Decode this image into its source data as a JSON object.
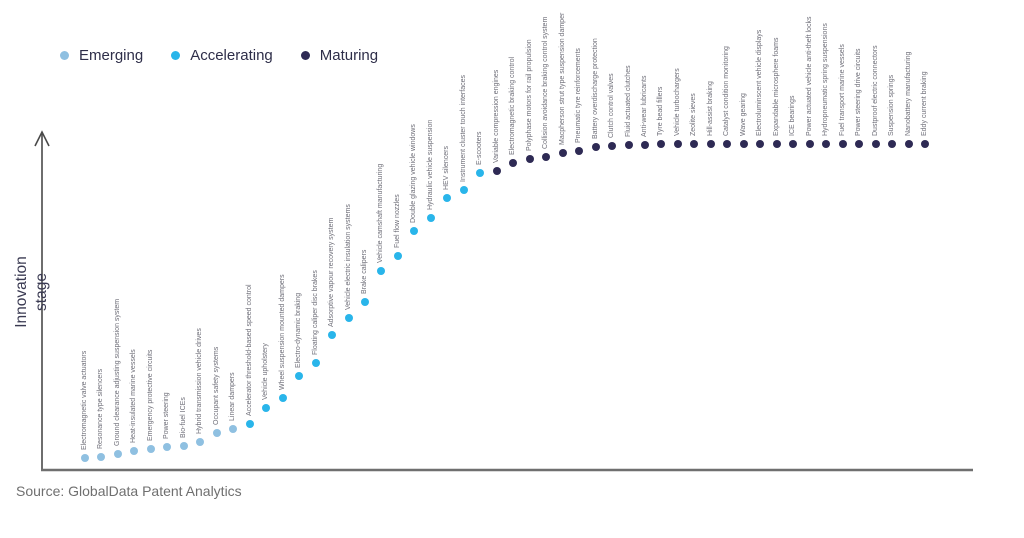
{
  "axis": {
    "y_label": "Innovation stage"
  },
  "source": {
    "text": "Source: GlobalData Patent Analytics"
  },
  "chart_data": {
    "type": "scatter",
    "title": "",
    "xlabel": "",
    "ylabel": "Innovation stage",
    "ylim": [
      0,
      100
    ],
    "grid": false,
    "legend_position": "top-left",
    "legend": [
      {
        "label": "Emerging",
        "color": "#8FC0E1"
      },
      {
        "label": "Accelerating",
        "color": "#29B5EA"
      },
      {
        "label": "Maturing",
        "color": "#2E2A54"
      }
    ],
    "points": [
      {
        "label": "Electromagnetic valve actuators",
        "stage": "Emerging",
        "score": 3.7
      },
      {
        "label": "Resonance type silencers",
        "stage": "Emerging",
        "score": 4.0
      },
      {
        "label": "Ground clearance adjusting suspension system",
        "stage": "Emerging",
        "score": 4.9
      },
      {
        "label": "Heat-insulated marine vessels",
        "stage": "Emerging",
        "score": 5.8
      },
      {
        "label": "Emergency protective circuits",
        "stage": "Emerging",
        "score": 6.4
      },
      {
        "label": "Power steering",
        "stage": "Emerging",
        "score": 7.1
      },
      {
        "label": "Bio-fuel ICEs",
        "stage": "Emerging",
        "score": 7.4
      },
      {
        "label": "Hybrid transmission vehicle drives",
        "stage": "Emerging",
        "score": 8.6
      },
      {
        "label": "Occupant safety systems",
        "stage": "Emerging",
        "score": 11.3
      },
      {
        "label": "Linear dampers",
        "stage": "Emerging",
        "score": 12.6
      },
      {
        "label": "Accelerator threshold-based speed control",
        "stage": "Accelerating",
        "score": 14.1
      },
      {
        "label": "Vehicle upholstery",
        "stage": "Accelerating",
        "score": 19.0
      },
      {
        "label": "Wheel suspension mounted dampers",
        "stage": "Accelerating",
        "score": 22.1
      },
      {
        "label": "Electro-dynamic braking",
        "stage": "Accelerating",
        "score": 28.8
      },
      {
        "label": "Floating caliper disc brakes",
        "stage": "Accelerating",
        "score": 32.8
      },
      {
        "label": "Adsorptive vapour recovery system",
        "stage": "Accelerating",
        "score": 41.4
      },
      {
        "label": "Vehicle electric insulation systems",
        "stage": "Accelerating",
        "score": 46.6
      },
      {
        "label": "Brake calipers",
        "stage": "Accelerating",
        "score": 51.5
      },
      {
        "label": "Vehicle camshaft manufacturing",
        "stage": "Accelerating",
        "score": 61.0
      },
      {
        "label": "Fuel flow nozzles",
        "stage": "Accelerating",
        "score": 65.6
      },
      {
        "label": "Double glazing vehicle windows",
        "stage": "Accelerating",
        "score": 73.3
      },
      {
        "label": "Hydraulic vehicle suspension",
        "stage": "Accelerating",
        "score": 77.3
      },
      {
        "label": "HEV silencers",
        "stage": "Accelerating",
        "score": 83.4
      },
      {
        "label": "Instrument cluster touch interfaces",
        "stage": "Accelerating",
        "score": 85.9
      },
      {
        "label": "E-scooters",
        "stage": "Accelerating",
        "score": 91.1
      },
      {
        "label": "Variable compression engines",
        "stage": "Maturing",
        "score": 91.7
      },
      {
        "label": "Electromagnetic braking control",
        "stage": "Maturing",
        "score": 94.2
      },
      {
        "label": "Polyphase motors for rail propulsion",
        "stage": "Maturing",
        "score": 95.4
      },
      {
        "label": "Collision avoidance braking control system",
        "stage": "Maturing",
        "score": 96.0
      },
      {
        "label": "Macpherson strut type suspension damper",
        "stage": "Maturing",
        "score": 97.2
      },
      {
        "label": "Pneumatic tyre reinforcements",
        "stage": "Maturing",
        "score": 97.9
      },
      {
        "label": "Battery overdischarge protection",
        "stage": "Maturing",
        "score": 99.1
      },
      {
        "label": "Clutch control valves",
        "stage": "Maturing",
        "score": 99.4
      },
      {
        "label": "Fluid actuated clutches",
        "stage": "Maturing",
        "score": 99.7
      },
      {
        "label": "Anti-wear lubricants",
        "stage": "Maturing",
        "score": 99.7
      },
      {
        "label": "Tyre bead fillers",
        "stage": "Maturing",
        "score": 100
      },
      {
        "label": "Vehicle turbochargers",
        "stage": "Maturing",
        "score": 100
      },
      {
        "label": "Zeolite sieves",
        "stage": "Maturing",
        "score": 100
      },
      {
        "label": "Hill-assist braking",
        "stage": "Maturing",
        "score": 100
      },
      {
        "label": "Catalyst condition monitoring",
        "stage": "Maturing",
        "score": 100
      },
      {
        "label": "Wave gearing",
        "stage": "Maturing",
        "score": 100
      },
      {
        "label": "Electroluminscent vehicle displays",
        "stage": "Maturing",
        "score": 100
      },
      {
        "label": "Expandable microsphere foams",
        "stage": "Maturing",
        "score": 100
      },
      {
        "label": "ICE bearings",
        "stage": "Maturing",
        "score": 100
      },
      {
        "label": "Power actuated vehicle anti-theft locks",
        "stage": "Maturing",
        "score": 100
      },
      {
        "label": "Hydropneumatic spring suspensions",
        "stage": "Maturing",
        "score": 100
      },
      {
        "label": "Fuel transport marine vessels",
        "stage": "Maturing",
        "score": 100
      },
      {
        "label": "Power steering drive circuits",
        "stage": "Maturing",
        "score": 100
      },
      {
        "label": "Dustproof electric connectors",
        "stage": "Maturing",
        "score": 100
      },
      {
        "label": "Suspension springs",
        "stage": "Maturing",
        "score": 100
      },
      {
        "label": "Nanobattery manufacturing",
        "stage": "Maturing",
        "score": 100
      },
      {
        "label": "Eddy current braking",
        "stage": "Maturing",
        "score": 100
      }
    ]
  }
}
